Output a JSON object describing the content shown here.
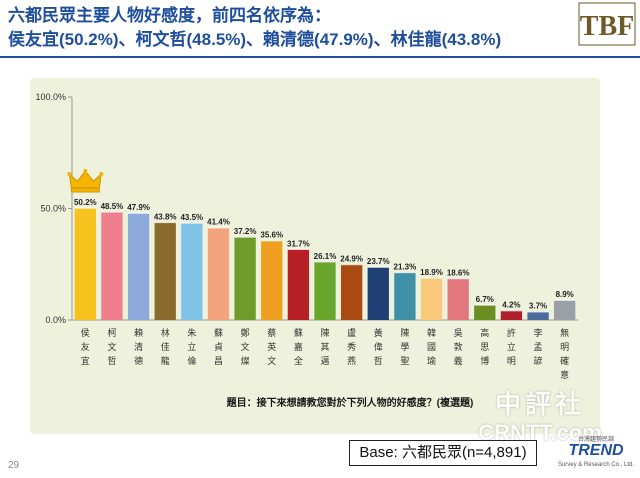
{
  "title": {
    "line1": "六都民眾主要人物好感度，前四名依序為：",
    "line2": "侯友宜(50.2%)、柯文哲(48.5%)、賴清德(47.9%)、林佳龍(43.8%)"
  },
  "logo_text": "TBF",
  "question": "題目：接下來想請教您對於下列人物的好感度？(複選題)",
  "base": "Base: 六都民眾(n=4,891)",
  "page_number": "29",
  "watermark": {
    "line1": "中評社",
    "line2": "CRNTT.com"
  },
  "trend_logo": {
    "top": "台灣趨勢民調",
    "name": "TREND",
    "sub": "Survey & Research Co., Ltd."
  },
  "colors": {
    "title": "#1f4e9c",
    "panel": "#eef2dc",
    "crown": "#f4b400"
  },
  "chart_data": {
    "type": "bar",
    "ylim": [
      0,
      100
    ],
    "yticks": [
      "0.0%",
      "50.0%",
      "100.0%"
    ],
    "ytick_values": [
      0,
      50,
      100
    ],
    "grid": false,
    "categories": [
      "侯友宜",
      "柯文哲",
      "賴清德",
      "林佳龍",
      "朱立倫",
      "蘇貞昌",
      "鄭文燦",
      "蔡英文",
      "蘇嘉全",
      "陳其邁",
      "盧秀燕",
      "黃偉哲",
      "陳學聖",
      "韓國瑜",
      "吳敦義",
      "高思博",
      "許立明",
      "李孟諺",
      "無明確意"
    ],
    "values": [
      50.2,
      48.5,
      47.9,
      43.8,
      43.5,
      41.4,
      37.2,
      35.6,
      31.7,
      26.1,
      24.9,
      23.7,
      21.3,
      18.9,
      18.6,
      6.7,
      4.2,
      3.7,
      8.9
    ],
    "labels": [
      "50.2%",
      "48.5%",
      "47.9%",
      "43.8%",
      "43.5%",
      "41.4%",
      "37.2%",
      "35.6%",
      "31.7%",
      "26.1%",
      "24.9%",
      "23.7%",
      "21.3%",
      "18.9%",
      "18.6%",
      "6.7%",
      "4.2%",
      "3.7%",
      "8.9%"
    ],
    "colors": [
      "#f7c21d",
      "#ef7f8f",
      "#8ea9db",
      "#8b6a2e",
      "#7fc4e8",
      "#f4a47c",
      "#6e9b2a",
      "#f0a020",
      "#b81f24",
      "#6aa62e",
      "#a84a12",
      "#1f3f75",
      "#3f8fa6",
      "#f8c97a",
      "#e2777d",
      "#6b8e23",
      "#b0202a",
      "#4a6c9a",
      "#9aa0a6"
    ]
  }
}
